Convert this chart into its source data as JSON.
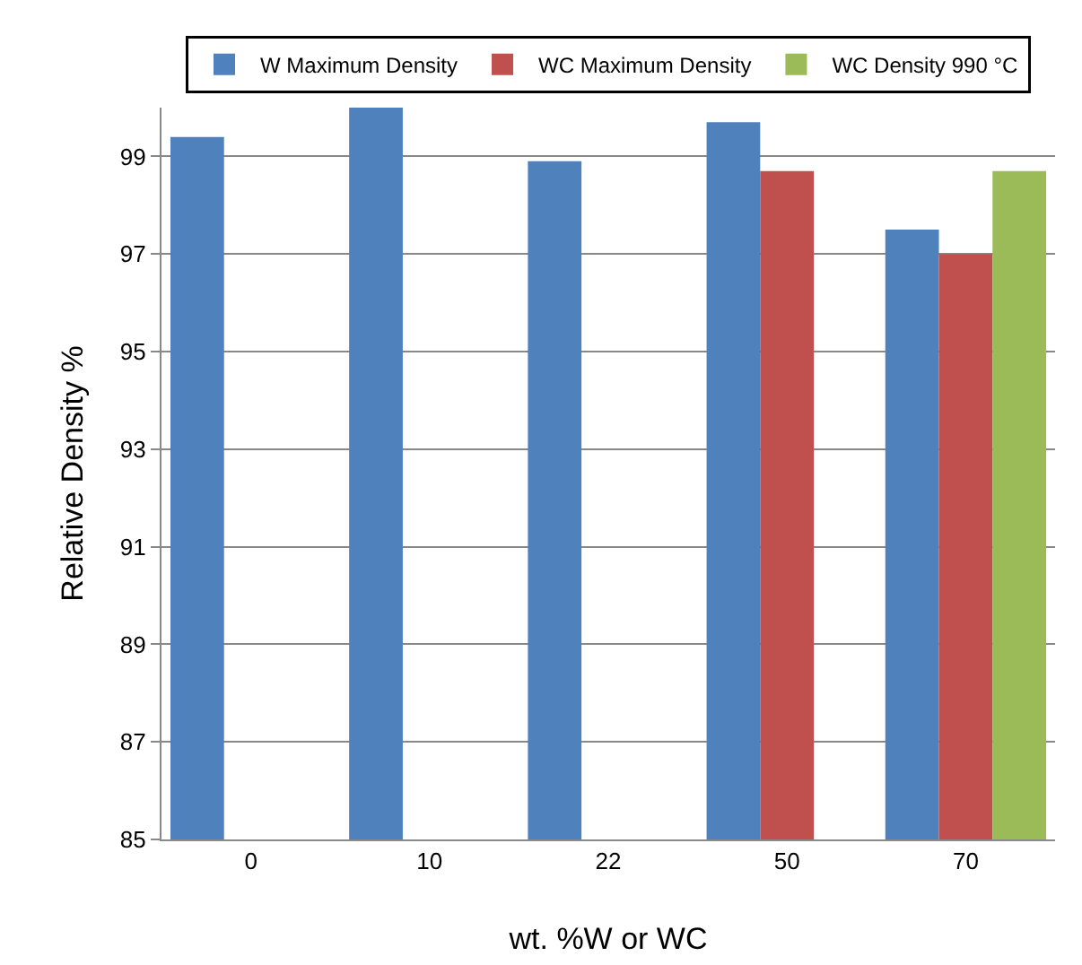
{
  "chart_data": {
    "type": "bar",
    "xlabel": "wt. %W or WC",
    "ylabel": "Relative Density %",
    "categories": [
      "0",
      "10",
      "22",
      "50",
      "70"
    ],
    "series": [
      {
        "name": "W Maximum Density",
        "color": "#4f81bd",
        "values": [
          99.4,
          100.0,
          98.9,
          99.7,
          97.5
        ]
      },
      {
        "name": "WC Maximum Density",
        "color": "#c0504d",
        "values": [
          null,
          null,
          null,
          98.7,
          97.0
        ]
      },
      {
        "name": "WC Density 990 °C",
        "color": "#9bbb59",
        "values": [
          null,
          null,
          null,
          null,
          98.7
        ]
      }
    ],
    "ylim": [
      85,
      100
    ],
    "yticks": [
      85,
      87,
      89,
      91,
      93,
      95,
      97,
      99
    ],
    "grid": "y",
    "legend": "top"
  }
}
